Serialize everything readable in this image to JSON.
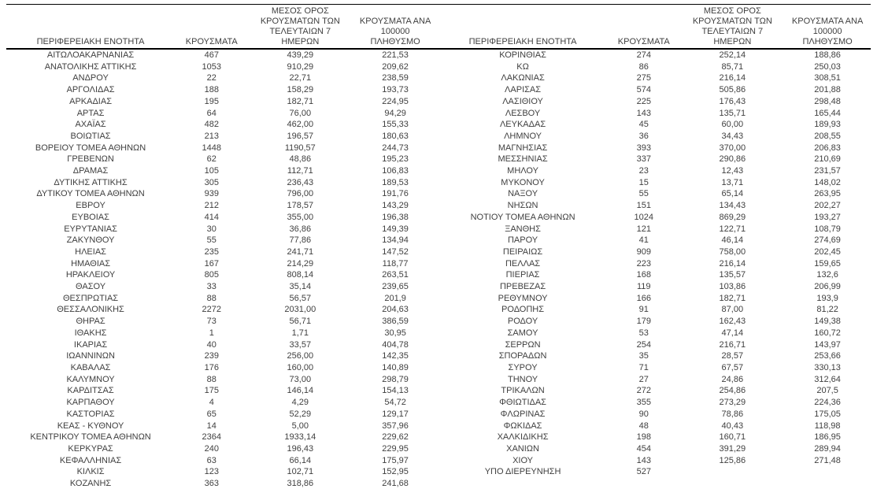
{
  "colors": {
    "text": "#3f3f3f",
    "border": "#000000",
    "background": "#ffffff"
  },
  "header": {
    "region": "ΠΕΡΙΦΕΡΕΙΑΚΗ ΕΝΟΤΗΤΑ",
    "cases": "ΚΡΟΥΣΜΑΤΑ",
    "avg7_line1": "ΜΕΣΟΣ ΟΡΟΣ",
    "avg7_line2": "ΚΡΟΥΣΜΑΤΩΝ ΤΩΝ",
    "avg7_line3": "ΤΕΛΕΥΤΑΙΩΝ 7 ΗΜΕΡΩΝ",
    "per100k_line1": "ΚΡΟΥΣΜΑΤΑ ΑΝΑ 100000",
    "per100k_line2": "ΠΛΗΘΥΣΜΟ"
  },
  "left_table": {
    "rows": [
      [
        "ΑΙΤΩΛΟΑΚΑΡΝΑΝΙΑΣ",
        "467",
        "439,29",
        "221,53"
      ],
      [
        "ΑΝΑΤΟΛΙΚΗΣ ΑΤΤΙΚΗΣ",
        "1053",
        "910,29",
        "209,62"
      ],
      [
        "ΑΝΔΡΟΥ",
        "22",
        "22,71",
        "238,59"
      ],
      [
        "ΑΡΓΟΛΙΔΑΣ",
        "188",
        "158,29",
        "193,73"
      ],
      [
        "ΑΡΚΑΔΙΑΣ",
        "195",
        "182,71",
        "224,95"
      ],
      [
        "ΑΡΤΑΣ",
        "64",
        "76,00",
        "94,29"
      ],
      [
        "ΑΧΑΪΑΣ",
        "482",
        "462,00",
        "155,33"
      ],
      [
        "ΒΟΙΩΤΙΑΣ",
        "213",
        "196,57",
        "180,63"
      ],
      [
        "ΒΟΡΕΙΟΥ ΤΟΜΕΑ ΑΘΗΝΩΝ",
        "1448",
        "1190,57",
        "244,73"
      ],
      [
        "ΓΡΕΒΕΝΩΝ",
        "62",
        "48,86",
        "195,23"
      ],
      [
        "ΔΡΑΜΑΣ",
        "105",
        "112,71",
        "106,83"
      ],
      [
        "ΔΥΤΙΚΗΣ ΑΤΤΙΚΗΣ",
        "305",
        "236,43",
        "189,53"
      ],
      [
        "ΔΥΤΙΚΟΥ ΤΟΜΕΑ ΑΘΗΝΩΝ",
        "939",
        "796,00",
        "191,76"
      ],
      [
        "ΕΒΡΟΥ",
        "212",
        "178,57",
        "143,29"
      ],
      [
        "ΕΥΒΟΙΑΣ",
        "414",
        "355,00",
        "196,38"
      ],
      [
        "ΕΥΡΥΤΑΝΙΑΣ",
        "30",
        "36,86",
        "149,39"
      ],
      [
        "ΖΑΚΥΝΘΟΥ",
        "55",
        "77,86",
        "134,94"
      ],
      [
        "ΗΛΕΙΑΣ",
        "235",
        "241,71",
        "147,52"
      ],
      [
        "ΗΜΑΘΙΑΣ",
        "167",
        "214,29",
        "118,77"
      ],
      [
        "ΗΡΑΚΛΕΙΟΥ",
        "805",
        "808,14",
        "263,51"
      ],
      [
        "ΘΑΣΟΥ",
        "33",
        "35,14",
        "239,65"
      ],
      [
        "ΘΕΣΠΡΩΤΙΑΣ",
        "88",
        "56,57",
        "201,9"
      ],
      [
        "ΘΕΣΣΑΛΟΝΙΚΗΣ",
        "2272",
        "2031,00",
        "204,63"
      ],
      [
        "ΘΗΡΑΣ",
        "73",
        "56,71",
        "386,59"
      ],
      [
        "ΙΘΑΚΗΣ",
        "1",
        "1,71",
        "30,95"
      ],
      [
        "ΙΚΑΡΙΑΣ",
        "40",
        "33,57",
        "404,78"
      ],
      [
        "ΙΩΑΝΝΙΝΩΝ",
        "239",
        "256,00",
        "142,35"
      ],
      [
        "ΚΑΒΑΛΑΣ",
        "176",
        "160,00",
        "140,89"
      ],
      [
        "ΚΑΛΥΜΝΟΥ",
        "88",
        "73,00",
        "298,79"
      ],
      [
        "ΚΑΡΔΙΤΣΑΣ",
        "175",
        "146,14",
        "154,13"
      ],
      [
        "ΚΑΡΠΑΘΟΥ",
        "4",
        "4,29",
        "54,72"
      ],
      [
        "ΚΑΣΤΟΡΙΑΣ",
        "65",
        "52,29",
        "129,17"
      ],
      [
        "ΚΕΑΣ - ΚΥΘΝΟΥ",
        "14",
        "5,00",
        "357,96"
      ],
      [
        "ΚΕΝΤΡΙΚΟΥ ΤΟΜΕΑ ΑΘΗΝΩΝ",
        "2364",
        "1933,14",
        "229,62"
      ],
      [
        "ΚΕΡΚΥΡΑΣ",
        "240",
        "196,43",
        "229,95"
      ],
      [
        "ΚΕΦΑΛΛΗΝΙΑΣ",
        "63",
        "66,14",
        "175,97"
      ],
      [
        "ΚΙΛΚΙΣ",
        "123",
        "102,71",
        "152,95"
      ],
      [
        "ΚΟΖΑΝΗΣ",
        "363",
        "318,86",
        "241,68"
      ]
    ]
  },
  "right_table": {
    "rows": [
      [
        "ΚΟΡΙΝΘΙΑΣ",
        "274",
        "252,14",
        "188,86"
      ],
      [
        "ΚΩ",
        "86",
        "85,71",
        "250,03"
      ],
      [
        "ΛΑΚΩΝΙΑΣ",
        "275",
        "216,14",
        "308,51"
      ],
      [
        "ΛΑΡΙΣΑΣ",
        "574",
        "505,86",
        "201,88"
      ],
      [
        "ΛΑΣΙΘΙΟΥ",
        "225",
        "176,43",
        "298,48"
      ],
      [
        "ΛΕΣΒΟΥ",
        "143",
        "135,71",
        "165,44"
      ],
      [
        "ΛΕΥΚΑΔΑΣ",
        "45",
        "60,00",
        "189,93"
      ],
      [
        "ΛΗΜΝΟΥ",
        "36",
        "34,43",
        "208,55"
      ],
      [
        "ΜΑΓΝΗΣΙΑΣ",
        "393",
        "370,00",
        "206,83"
      ],
      [
        "ΜΕΣΣΗΝΙΑΣ",
        "337",
        "290,86",
        "210,69"
      ],
      [
        "ΜΗΛΟΥ",
        "23",
        "12,43",
        "231,57"
      ],
      [
        "ΜΥΚΟΝΟΥ",
        "15",
        "13,71",
        "148,02"
      ],
      [
        "ΝΑΞΟΥ",
        "55",
        "65,14",
        "263,95"
      ],
      [
        "ΝΗΣΩΝ",
        "151",
        "134,43",
        "202,27"
      ],
      [
        "ΝΟΤΙΟΥ ΤΟΜΕΑ ΑΘΗΝΩΝ",
        "1024",
        "869,29",
        "193,27"
      ],
      [
        "ΞΑΝΘΗΣ",
        "121",
        "122,71",
        "108,79"
      ],
      [
        "ΠΑΡΟΥ",
        "41",
        "46,14",
        "274,69"
      ],
      [
        "ΠΕΙΡΑΙΩΣ",
        "909",
        "758,00",
        "202,45"
      ],
      [
        "ΠΕΛΛΑΣ",
        "223",
        "216,14",
        "159,65"
      ],
      [
        "ΠΙΕΡΙΑΣ",
        "168",
        "135,57",
        "132,6"
      ],
      [
        "ΠΡΕΒΕΖΑΣ",
        "119",
        "103,86",
        "206,99"
      ],
      [
        "ΡΕΘΥΜΝΟΥ",
        "166",
        "182,71",
        "193,9"
      ],
      [
        "ΡΟΔΟΠΗΣ",
        "91",
        "87,00",
        "81,22"
      ],
      [
        "ΡΟΔΟΥ",
        "179",
        "162,43",
        "149,38"
      ],
      [
        "ΣΑΜΟΥ",
        "53",
        "47,14",
        "160,72"
      ],
      [
        "ΣΕΡΡΩΝ",
        "254",
        "216,71",
        "143,97"
      ],
      [
        "ΣΠΟΡΑΔΩΝ",
        "35",
        "28,57",
        "253,66"
      ],
      [
        "ΣΥΡΟΥ",
        "71",
        "67,57",
        "330,13"
      ],
      [
        "ΤΗΝΟΥ",
        "27",
        "24,86",
        "312,64"
      ],
      [
        "ΤΡΙΚΑΛΩΝ",
        "272",
        "254,86",
        "207,5"
      ],
      [
        "ΦΘΙΩΤΙΔΑΣ",
        "355",
        "273,29",
        "224,36"
      ],
      [
        "ΦΛΩΡΙΝΑΣ",
        "90",
        "78,86",
        "175,05"
      ],
      [
        "ΦΩΚΙΔΑΣ",
        "48",
        "40,43",
        "118,98"
      ],
      [
        "ΧΑΛΚΙΔΙΚΗΣ",
        "198",
        "160,71",
        "186,95"
      ],
      [
        "ΧΑΝΙΩΝ",
        "454",
        "391,29",
        "289,94"
      ],
      [
        "ΧΙΟΥ",
        "143",
        "125,86",
        "271,48"
      ],
      [
        "ΥΠΟ ΔΙΕΡΕΥΝΗΣΗ",
        "527",
        "",
        ""
      ]
    ]
  }
}
